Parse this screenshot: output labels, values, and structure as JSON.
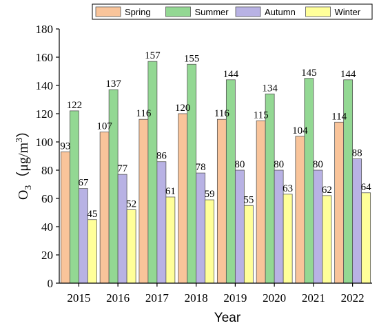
{
  "chart_data": {
    "type": "bar",
    "title": "",
    "xlabel": "Year",
    "ylabel_main": "O",
    "ylabel_sub": "3",
    "ylabel_unit": "（μg/m",
    "ylabel_sup": "3",
    "ylabel_close": "）",
    "categories": [
      "2015",
      "2016",
      "2017",
      "2018",
      "2019",
      "2020",
      "2021",
      "2022"
    ],
    "series": [
      {
        "name": "Spring",
        "color": "#f9c49a",
        "values": [
          93,
          107,
          116,
          120,
          116,
          115,
          104,
          114
        ]
      },
      {
        "name": "Summer",
        "color": "#93d893",
        "values": [
          122,
          137,
          157,
          155,
          144,
          134,
          145,
          144
        ]
      },
      {
        "name": "Autumn",
        "color": "#b8b2e4",
        "values": [
          67,
          77,
          86,
          78,
          80,
          80,
          80,
          88
        ]
      },
      {
        "name": "Winter",
        "color": "#ffff99",
        "values": [
          45,
          52,
          61,
          59,
          55,
          63,
          62,
          64
        ]
      }
    ],
    "ylim": [
      0,
      180
    ],
    "yticks": [
      0,
      20,
      40,
      60,
      80,
      100,
      120,
      140,
      160,
      180
    ],
    "legend_position": "top",
    "grid": false
  }
}
